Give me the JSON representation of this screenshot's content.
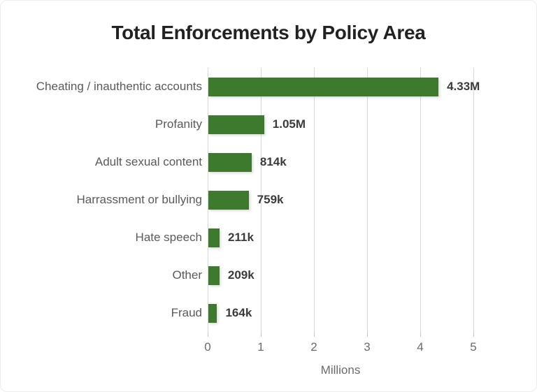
{
  "colors": {
    "bar": "#3E7A2E",
    "title_text": "#222222",
    "category_text": "#5A5A5A",
    "value_text": "#3B3B3B",
    "axis_text": "#6B6B6B",
    "gridline": "#D9D9D9"
  },
  "chart_data": {
    "type": "bar",
    "orientation": "horizontal",
    "title": "Total Enforcements by Policy Area",
    "xlabel": "Millions",
    "categories": [
      "Cheating / inauthentic accounts",
      "Profanity",
      "Adult sexual content",
      "Harrassment or bullying",
      "Hate speech",
      "Other",
      "Fraud"
    ],
    "values": [
      4330000,
      1050000,
      814000,
      759000,
      211000,
      209000,
      164000
    ],
    "value_labels": [
      "4.33M",
      "1.05M",
      "814k",
      "759k",
      "211k",
      "209k",
      "164k"
    ],
    "x_ticks": [
      "0",
      "1",
      "2",
      "3",
      "4",
      "5"
    ],
    "xlim": [
      0,
      5000000
    ],
    "grid": true,
    "legend": "none"
  }
}
